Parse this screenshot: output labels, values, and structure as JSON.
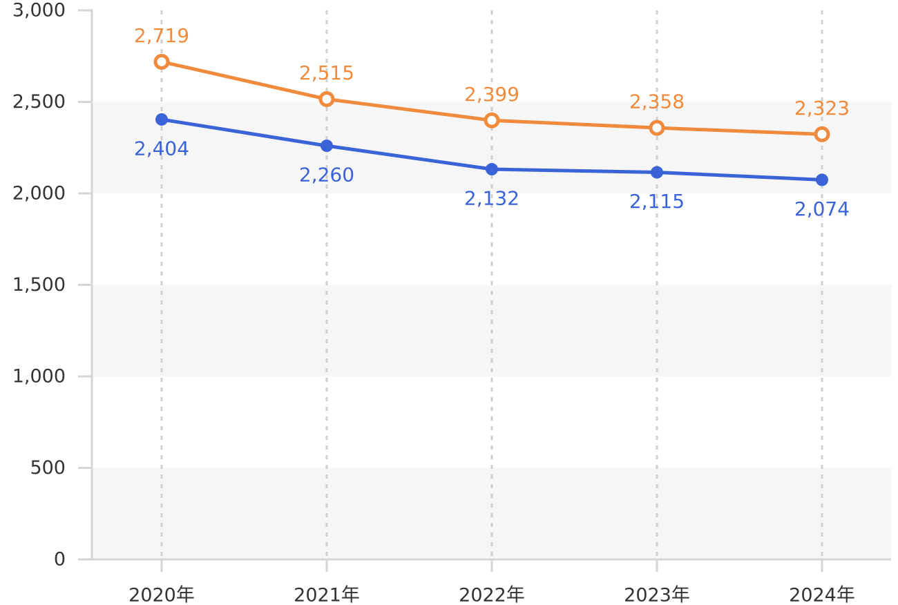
{
  "chart_data": {
    "type": "line",
    "categories": [
      "2020年",
      "2021年",
      "2022年",
      "2023年",
      "2024年"
    ],
    "series": [
      {
        "values": [
          2719,
          2515,
          2399,
          2358,
          2323
        ],
        "labels": [
          "2,719",
          "2,515",
          "2,399",
          "2,358",
          "2,323"
        ],
        "color": "#F08A3C",
        "marker": "hollow-circle",
        "label_position": "above"
      },
      {
        "values": [
          2404,
          2260,
          2132,
          2115,
          2074
        ],
        "labels": [
          "2,404",
          "2,260",
          "2,132",
          "2,115",
          "2,074"
        ],
        "color": "#3A63D8",
        "marker": "filled-circle",
        "label_position": "below"
      }
    ],
    "yticks": [
      0,
      500,
      1000,
      1500,
      2000,
      2500,
      3000
    ],
    "ytick_labels": [
      "0",
      "500",
      "1,000",
      "1,500",
      "2,000",
      "2,500",
      "3,000"
    ],
    "ylim": [
      0,
      3000
    ],
    "title": "",
    "xlabel": "",
    "ylabel": "",
    "grid": "vertical dashed lines at categories, alternating horizontal bands",
    "band_color": "#F6F6F6",
    "axis_color": "#D5D5D5",
    "legend": "none"
  }
}
